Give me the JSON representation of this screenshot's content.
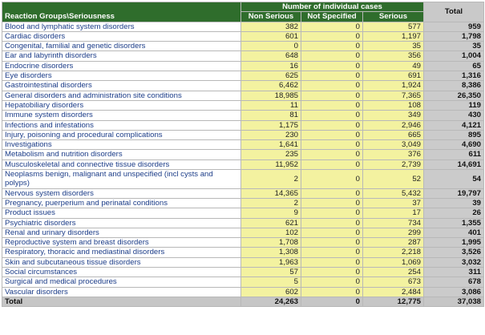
{
  "table": {
    "group_header": "Number of individual cases",
    "total_header": "Total",
    "columns": [
      "Reaction Groups\\Seriousness",
      "Non Serious",
      "Not Specified",
      "Serious"
    ],
    "rows": [
      [
        "Blood and lymphatic system disorders",
        "382",
        "0",
        "577",
        "959"
      ],
      [
        "Cardiac disorders",
        "601",
        "0",
        "1,197",
        "1,798"
      ],
      [
        "Congenital, familial and genetic disorders",
        "0",
        "0",
        "35",
        "35"
      ],
      [
        "Ear and labyrinth disorders",
        "648",
        "0",
        "356",
        "1,004"
      ],
      [
        "Endocrine disorders",
        "16",
        "0",
        "49",
        "65"
      ],
      [
        "Eye disorders",
        "625",
        "0",
        "691",
        "1,316"
      ],
      [
        "Gastrointestinal disorders",
        "6,462",
        "0",
        "1,924",
        "8,386"
      ],
      [
        "General disorders and administration site conditions",
        "18,985",
        "0",
        "7,365",
        "26,350"
      ],
      [
        "Hepatobiliary disorders",
        "11",
        "0",
        "108",
        "119"
      ],
      [
        "Immune system disorders",
        "81",
        "0",
        "349",
        "430"
      ],
      [
        "Infections and infestations",
        "1,175",
        "0",
        "2,946",
        "4,121"
      ],
      [
        "Injury, poisoning and procedural complications",
        "230",
        "0",
        "665",
        "895"
      ],
      [
        "Investigations",
        "1,641",
        "0",
        "3,049",
        "4,690"
      ],
      [
        "Metabolism and nutrition disorders",
        "235",
        "0",
        "376",
        "611"
      ],
      [
        "Musculoskeletal and connective tissue disorders",
        "11,952",
        "0",
        "2,739",
        "14,691"
      ],
      [
        "Neoplasms benign, malignant and unspecified (incl cysts and polyps)",
        "2",
        "0",
        "52",
        "54"
      ],
      [
        "Nervous system disorders",
        "14,365",
        "0",
        "5,432",
        "19,797"
      ],
      [
        "Pregnancy, puerperium and perinatal conditions",
        "2",
        "0",
        "37",
        "39"
      ],
      [
        "Product issues",
        "9",
        "0",
        "17",
        "26"
      ],
      [
        "Psychiatric disorders",
        "621",
        "0",
        "734",
        "1,355"
      ],
      [
        "Renal and urinary disorders",
        "102",
        "0",
        "299",
        "401"
      ],
      [
        "Reproductive system and breast disorders",
        "1,708",
        "0",
        "287",
        "1,995"
      ],
      [
        "Respiratory, thoracic and mediastinal disorders",
        "1,308",
        "0",
        "2,218",
        "3,526"
      ],
      [
        "Skin and subcutaneous tissue disorders",
        "1,963",
        "0",
        "1,069",
        "3,032"
      ],
      [
        "Social circumstances",
        "57",
        "0",
        "254",
        "311"
      ],
      [
        "Surgical and medical procedures",
        "5",
        "0",
        "673",
        "678"
      ],
      [
        "Vascular disorders",
        "602",
        "0",
        "2,484",
        "3,086"
      ]
    ],
    "total_row": [
      "Total",
      "24,263",
      "0",
      "12,775",
      "37,038"
    ]
  }
}
